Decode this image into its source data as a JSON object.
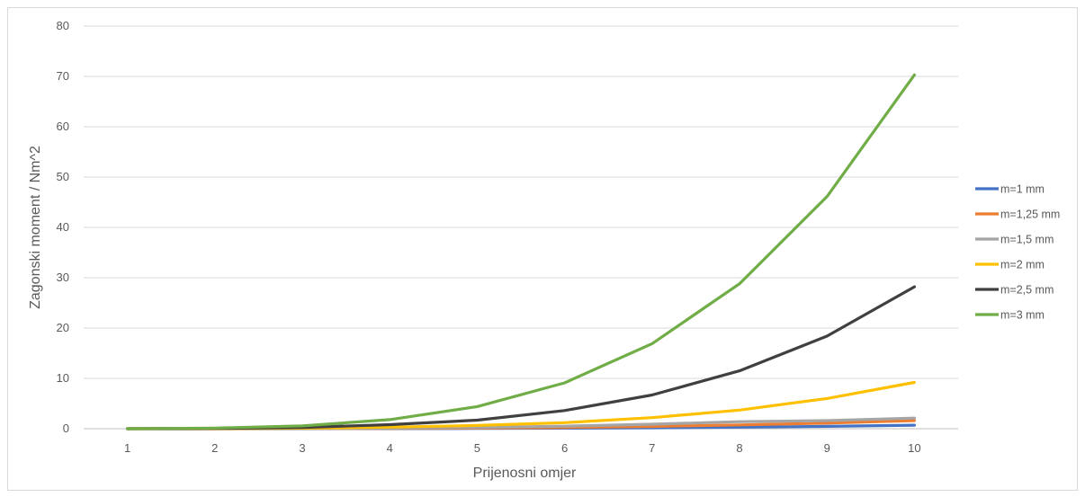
{
  "chart_data": {
    "type": "line",
    "title": "",
    "xlabel": "Prijenosni omjer",
    "ylabel": "Zagonski moment / Nm^2",
    "categories": [
      "1",
      "2",
      "3",
      "4",
      "5",
      "6",
      "7",
      "8",
      "9",
      "10"
    ],
    "ylim": [
      0,
      80
    ],
    "yticks": [
      "0",
      "10",
      "20",
      "30",
      "40",
      "50",
      "60",
      "70",
      "80"
    ],
    "grid": true,
    "legend": "right",
    "series": [
      {
        "name": "m=1 mm",
        "color": "#4472C4",
        "values": [
          0,
          0.0008,
          0.006,
          0.02,
          0.05,
          0.1,
          0.18,
          0.3,
          0.47,
          0.7
        ]
      },
      {
        "name": "m=1,25 mm",
        "color": "#ED7D31",
        "values": [
          0,
          0.002,
          0.015,
          0.05,
          0.12,
          0.25,
          0.45,
          0.75,
          1.1,
          1.6
        ]
      },
      {
        "name": "m=1,5 mm",
        "color": "#A5A5A5",
        "values": [
          0,
          0.005,
          0.03,
          0.1,
          0.25,
          0.5,
          0.9,
          1.4,
          1.6,
          2.1
        ]
      },
      {
        "name": "m=2 mm",
        "color": "#FFC000",
        "values": [
          0,
          0.02,
          0.1,
          0.3,
          0.65,
          1.2,
          2.2,
          3.7,
          6.0,
          9.2
        ]
      },
      {
        "name": "m=2,5 mm",
        "color": "#404040",
        "values": [
          0,
          0.06,
          0.25,
          0.8,
          1.7,
          3.6,
          6.7,
          11.5,
          18.4,
          28.2
        ]
      },
      {
        "name": "m=3 mm",
        "color": "#70AD47",
        "values": [
          0,
          0.12,
          0.55,
          1.8,
          4.4,
          9.1,
          16.9,
          28.8,
          46.1,
          70.3
        ]
      }
    ]
  }
}
